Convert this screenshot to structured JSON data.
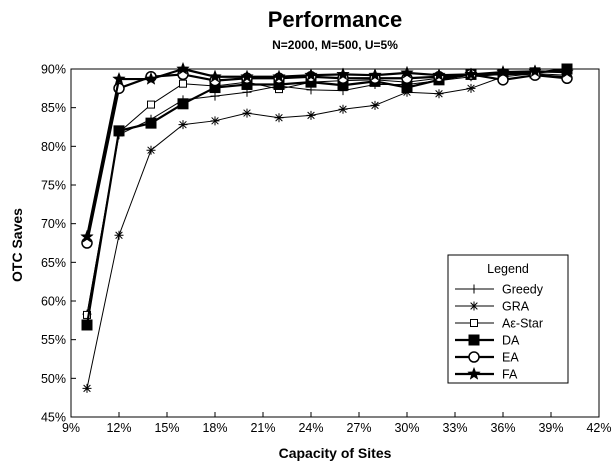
{
  "chart_data": {
    "type": "line",
    "title": "Performance",
    "subtitle": "N=2000, M=500, U=5%",
    "xlabel": "Capacity of Sites",
    "ylabel": "OTC Saves",
    "xlim": [
      9,
      42
    ],
    "ylim": [
      45,
      90
    ],
    "x_ticks": [
      9,
      12,
      15,
      18,
      21,
      24,
      27,
      30,
      33,
      36,
      39,
      42
    ],
    "x_tick_labels": [
      "9%",
      "12%",
      "15%",
      "18%",
      "21%",
      "24%",
      "27%",
      "30%",
      "33%",
      "36%",
      "39%",
      "42%"
    ],
    "y_ticks": [
      45,
      50,
      55,
      60,
      65,
      70,
      75,
      80,
      85,
      90
    ],
    "y_tick_labels": [
      "45%",
      "50%",
      "55%",
      "60%",
      "65%",
      "70%",
      "75%",
      "80%",
      "85%",
      "90%"
    ],
    "x": [
      10,
      12,
      14,
      16,
      18,
      20,
      22,
      24,
      26,
      28,
      30,
      32,
      34,
      36,
      38,
      40
    ],
    "legend_title": "Legend",
    "legend_position": "lower-right",
    "grid": false,
    "series": [
      {
        "name": "Greedy",
        "marker": "plus",
        "values": [
          58.3,
          81.5,
          83.5,
          86.0,
          86.5,
          87.0,
          87.8,
          87.3,
          87.2,
          88.0,
          88.0,
          88.5,
          89.0,
          89.3,
          89.3,
          89.0
        ]
      },
      {
        "name": "GRA",
        "marker": "asterisk",
        "values": [
          48.7,
          68.5,
          79.5,
          82.8,
          83.3,
          84.3,
          83.7,
          84.0,
          84.8,
          85.3,
          87.0,
          86.8,
          87.5,
          89.0,
          89.4,
          89.2
        ]
      },
      {
        "name": "Aε-Star",
        "marker": "open-square",
        "values": [
          58.2,
          81.8,
          85.4,
          88.1,
          87.8,
          88.3,
          87.4,
          88.3,
          88.5,
          88.6,
          88.3,
          88.8,
          89.3,
          89.5,
          89.6,
          89.6
        ]
      },
      {
        "name": "DA",
        "marker": "filled-square",
        "values": [
          56.9,
          82.0,
          83.0,
          85.5,
          87.6,
          88.0,
          88.0,
          88.3,
          87.9,
          88.4,
          87.6,
          88.6,
          89.3,
          89.3,
          89.5,
          90.0
        ]
      },
      {
        "name": "EA",
        "marker": "open-circle",
        "values": [
          67.5,
          87.5,
          89.0,
          89.3,
          88.5,
          88.8,
          88.8,
          89.0,
          88.8,
          88.8,
          88.8,
          89.0,
          89.3,
          88.6,
          89.2,
          88.8
        ]
      },
      {
        "name": "FA",
        "marker": "star",
        "values": [
          68.3,
          88.7,
          88.7,
          90.0,
          89.0,
          89.0,
          89.0,
          89.2,
          89.3,
          89.2,
          89.5,
          89.2,
          89.3,
          89.6,
          89.7,
          89.6
        ]
      }
    ]
  }
}
